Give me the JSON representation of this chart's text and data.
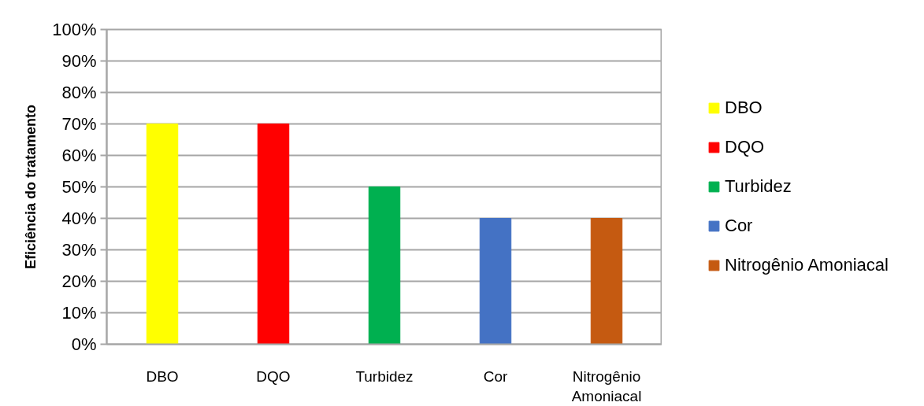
{
  "chart_data": {
    "type": "bar",
    "ylabel": "Eficiência do tratamento",
    "categories": [
      "DBO",
      "DQO",
      "Turbidez",
      "Cor",
      "Nitrogênio Amoniacal"
    ],
    "series": [
      {
        "name": "DBO",
        "color": "#ffff00",
        "values": [
          70,
          null,
          null,
          null,
          null
        ]
      },
      {
        "name": "DQO",
        "color": "#ff0000",
        "values": [
          null,
          70,
          null,
          null,
          null
        ]
      },
      {
        "name": "Turbidez",
        "color": "#00b050",
        "values": [
          null,
          null,
          50,
          null,
          null
        ]
      },
      {
        "name": "Cor",
        "color": "#4472c4",
        "values": [
          null,
          null,
          null,
          40,
          null
        ]
      },
      {
        "name": "Nitrogênio Amoniacal",
        "color": "#c55a11",
        "values": [
          null,
          null,
          null,
          null,
          40
        ]
      }
    ],
    "ylim": [
      0,
      100
    ],
    "yticks": [
      {
        "value": 0,
        "label": "0%"
      },
      {
        "value": 10,
        "label": "10%"
      },
      {
        "value": 20,
        "label": "20%"
      },
      {
        "value": 30,
        "label": "30%"
      },
      {
        "value": 40,
        "label": "40%"
      },
      {
        "value": 50,
        "label": "50%"
      },
      {
        "value": 60,
        "label": "60%"
      },
      {
        "value": 70,
        "label": "70%"
      },
      {
        "value": 80,
        "label": "80%"
      },
      {
        "value": 90,
        "label": "90%"
      },
      {
        "value": 100,
        "label": "100%"
      }
    ],
    "grid": "y",
    "legend": "right"
  }
}
